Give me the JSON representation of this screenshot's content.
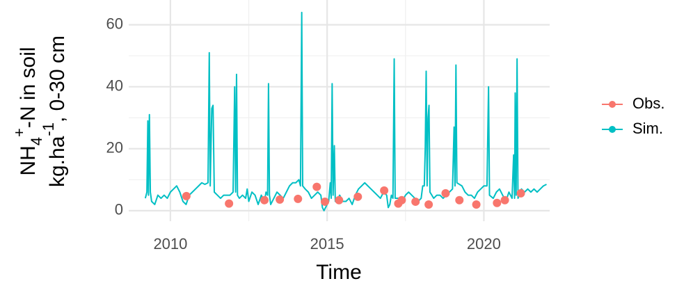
{
  "chart_data": {
    "type": "line",
    "x_label": "Time",
    "y_label_lines": [
      [
        {
          "text": "NH"
        },
        {
          "text": "4",
          "shift": "sub"
        },
        {
          "text": "+",
          "shift": "super"
        },
        {
          "text": "-N in soil"
        }
      ],
      [
        {
          "text": "kg.ha"
        },
        {
          "text": "-1",
          "shift": "super"
        },
        {
          "text": ", 0-30 cm"
        }
      ]
    ],
    "xlim": [
      2008.67,
      2022.1
    ],
    "xticks": [
      2010,
      2015,
      2020
    ],
    "xminor": [
      2012.5,
      2017.5
    ],
    "ylim": [
      -3.4,
      68
    ],
    "yticks": [
      0,
      20,
      40,
      60
    ],
    "yminor": [
      10,
      30,
      50
    ],
    "grid": true,
    "legend": "right",
    "series": [
      {
        "name": "Obs.",
        "color": "#F8766D",
        "mode": "points",
        "x": [
          2010.51,
          2011.87,
          2013.0,
          2013.49,
          2014.07,
          2014.67,
          2014.93,
          2015.38,
          2015.98,
          2016.82,
          2017.27,
          2017.38,
          2017.82,
          2018.24,
          2018.78,
          2019.22,
          2019.76,
          2020.42,
          2020.67,
          2021.18
        ],
        "values": [
          4.7,
          2.3,
          3.4,
          3.6,
          3.8,
          7.7,
          2.9,
          3.4,
          4.5,
          6.5,
          2.3,
          3.4,
          2.9,
          2.0,
          5.6,
          3.4,
          2.0,
          2.5,
          3.4,
          5.6
        ]
      },
      {
        "name": "Sim.",
        "color": "#00BFC4",
        "mode": "line",
        "x": [
          2009.2,
          2009.25,
          2009.28,
          2009.3,
          2009.33,
          2009.36,
          2009.4,
          2009.5,
          2009.6,
          2009.7,
          2009.8,
          2009.9,
          2010.0,
          2010.1,
          2010.2,
          2010.3,
          2010.4,
          2010.5,
          2010.6,
          2010.7,
          2010.8,
          2010.9,
          2011.0,
          2011.1,
          2011.2,
          2011.24,
          2011.27,
          2011.32,
          2011.36,
          2011.4,
          2011.5,
          2011.6,
          2011.7,
          2011.8,
          2011.9,
          2012.0,
          2012.05,
          2012.08,
          2012.11,
          2012.14,
          2012.2,
          2012.3,
          2012.4,
          2012.45,
          2012.5,
          2012.6,
          2012.7,
          2012.8,
          2012.9,
          2013.0,
          2013.05,
          2013.1,
          2013.13,
          2013.16,
          2013.2,
          2013.3,
          2013.4,
          2013.5,
          2013.6,
          2013.7,
          2013.8,
          2013.9,
          2014.0,
          2014.1,
          2014.15,
          2014.19,
          2014.22,
          2014.3,
          2014.4,
          2014.5,
          2014.6,
          2014.7,
          2014.8,
          2014.85,
          2014.9,
          2015.0,
          2015.05,
          2015.1,
          2015.13,
          2015.16,
          2015.19,
          2015.23,
          2015.26,
          2015.3,
          2015.4,
          2015.5,
          2015.6,
          2015.7,
          2015.8,
          2015.9,
          2016.0,
          2016.1,
          2016.2,
          2016.3,
          2016.4,
          2016.5,
          2016.6,
          2016.7,
          2016.8,
          2016.9,
          2016.95,
          2017.0,
          2017.05,
          2017.1,
          2017.14,
          2017.17,
          2017.3,
          2017.4,
          2017.5,
          2017.6,
          2017.7,
          2017.8,
          2017.9,
          2018.0,
          2018.05,
          2018.1,
          2018.13,
          2018.16,
          2018.19,
          2018.22,
          2018.25,
          2018.28,
          2018.4,
          2018.5,
          2018.6,
          2018.7,
          2018.8,
          2018.9,
          2019.0,
          2019.05,
          2019.08,
          2019.11,
          2019.14,
          2019.3,
          2019.4,
          2019.5,
          2019.6,
          2019.7,
          2019.8,
          2019.9,
          2020.0,
          2020.1,
          2020.15,
          2020.18,
          2020.3,
          2020.4,
          2020.5,
          2020.6,
          2020.7,
          2020.8,
          2020.9,
          2020.95,
          2020.98,
          2021.0,
          2021.03,
          2021.06,
          2021.09,
          2021.2,
          2021.3,
          2021.4,
          2021.5,
          2021.6,
          2021.7,
          2021.8,
          2021.9,
          2022.0
        ],
        "values": [
          4,
          6,
          29,
          5,
          31,
          6,
          3,
          2,
          5,
          4,
          5,
          4,
          6,
          7,
          8,
          6,
          3,
          2,
          5,
          6,
          7,
          8,
          9,
          8.5,
          9,
          51,
          8,
          33,
          34,
          6,
          5,
          4,
          5,
          5,
          5,
          6,
          40,
          6,
          44,
          5,
          4,
          5,
          4,
          7,
          3,
          6,
          5,
          2,
          5,
          3,
          6,
          5,
          41,
          5,
          2,
          4,
          6,
          5,
          4,
          6,
          8,
          9,
          9,
          10,
          8,
          64,
          8,
          7,
          6,
          4,
          5,
          6,
          5,
          1,
          0,
          2,
          3,
          9,
          4,
          41,
          5,
          21,
          3,
          3,
          5,
          3,
          3,
          4,
          2,
          5,
          7,
          8,
          9,
          8,
          7,
          6,
          5,
          4,
          6,
          5,
          1,
          2,
          5,
          4,
          49,
          4,
          4,
          3,
          5,
          6,
          5,
          4,
          3,
          4,
          8,
          8,
          20,
          45,
          8,
          30,
          34,
          6,
          4,
          5,
          5,
          4,
          5,
          6,
          7,
          27,
          8,
          47,
          9,
          8,
          6,
          5,
          5,
          4,
          6,
          7,
          8,
          8,
          40,
          5,
          4,
          6,
          7,
          5,
          3,
          6,
          4,
          18,
          4,
          38,
          5,
          49,
          4,
          7,
          6,
          7,
          6,
          7,
          6,
          7,
          8,
          8.5
        ]
      }
    ]
  }
}
